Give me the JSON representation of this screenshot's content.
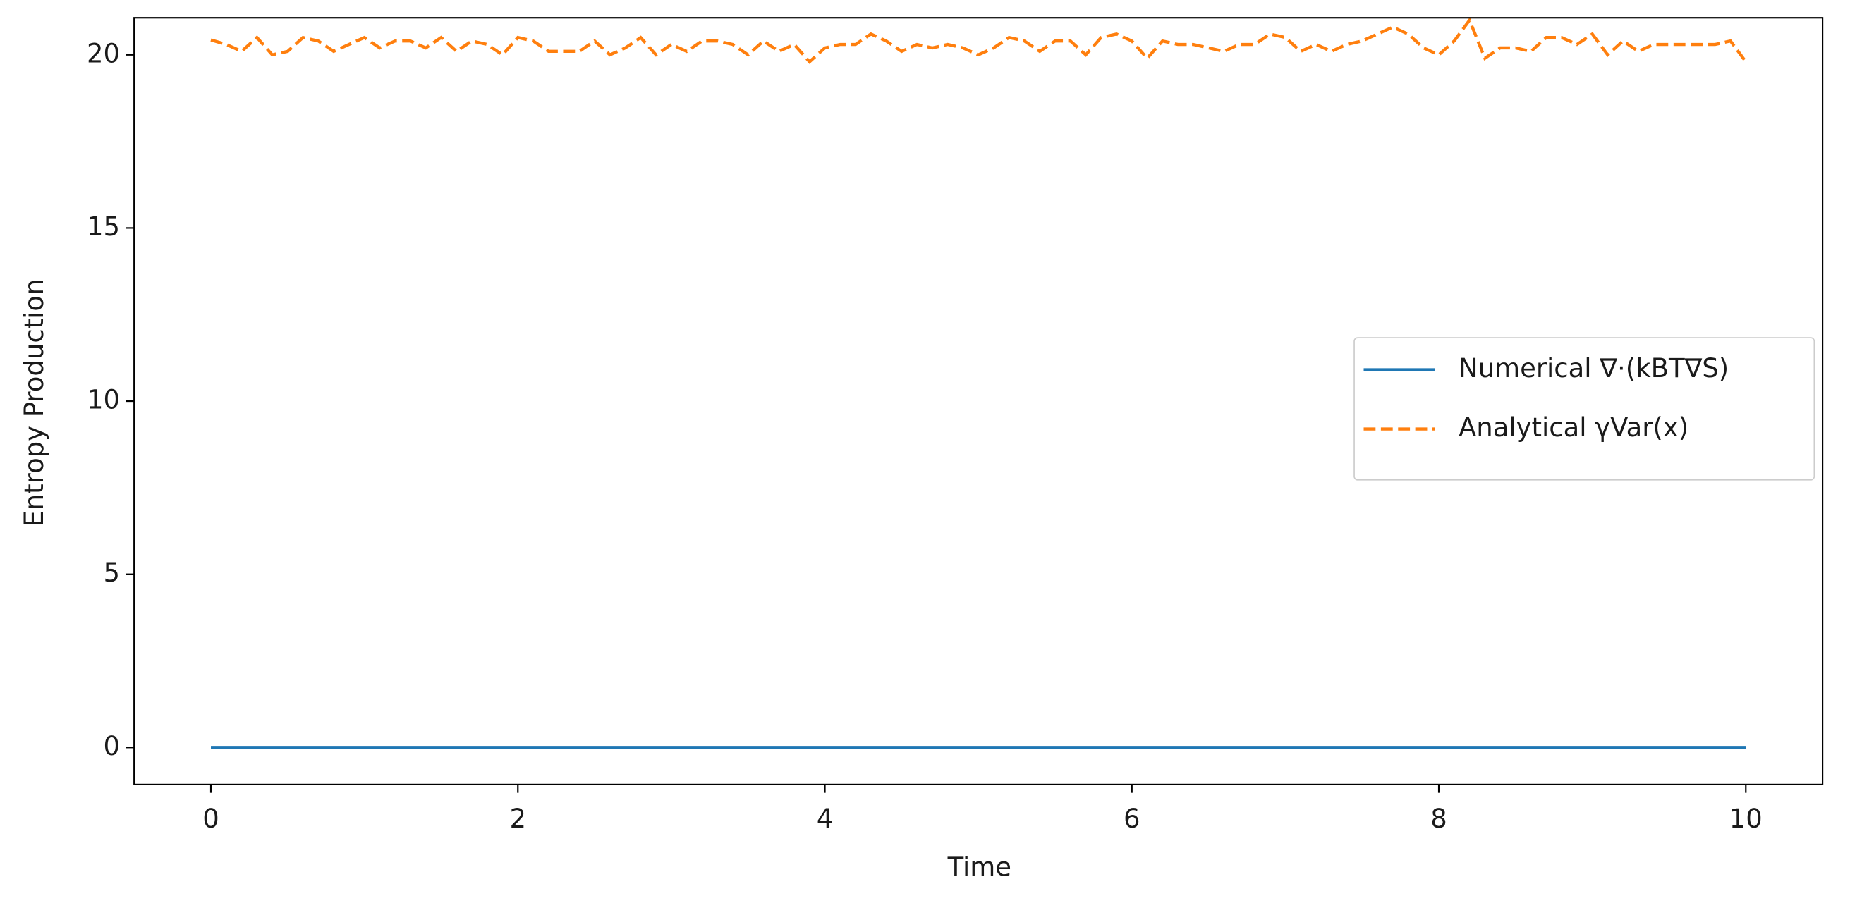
{
  "chart_data": {
    "type": "line",
    "x_label": "Time",
    "y_label": "Entropy Production",
    "x": [
      0,
      0.1,
      0.2,
      0.3,
      0.4,
      0.5,
      0.6,
      0.7,
      0.8,
      0.9,
      1,
      1.1,
      1.2,
      1.3,
      1.4,
      1.5,
      1.6,
      1.7,
      1.8,
      1.9,
      2,
      2.1,
      2.2,
      2.3,
      2.4,
      2.5,
      2.6,
      2.7,
      2.8,
      2.9,
      3,
      3.1,
      3.2,
      3.3,
      3.4,
      3.5,
      3.6,
      3.7,
      3.8,
      3.9,
      4,
      4.1,
      4.2,
      4.3,
      4.4,
      4.5,
      4.6,
      4.7,
      4.8,
      4.9,
      5,
      5.1,
      5.2,
      5.3,
      5.4,
      5.5,
      5.6,
      5.7,
      5.8,
      5.9,
      6,
      6.1,
      6.2,
      6.3,
      6.4,
      6.5,
      6.6,
      6.7,
      6.8,
      6.9,
      7,
      7.1,
      7.2,
      7.3,
      7.4,
      7.5,
      7.6,
      7.7,
      7.8,
      7.9,
      8,
      8.1,
      8.2,
      8.3,
      8.4,
      8.5,
      8.6,
      8.7,
      8.8,
      8.9,
      9,
      9.1,
      9.2,
      9.3,
      9.4,
      9.5,
      9.6,
      9.7,
      9.8,
      9.9,
      10
    ],
    "series": [
      {
        "name": "Numerical ∇·(kBT∇S)",
        "color": "#1f77b4",
        "dashed": false,
        "values": [
          0,
          0,
          0,
          0,
          0,
          0,
          0,
          0,
          0,
          0,
          0,
          0,
          0,
          0,
          0,
          0,
          0,
          0,
          0,
          0,
          0,
          0,
          0,
          0,
          0,
          0,
          0,
          0,
          0,
          0,
          0,
          0,
          0,
          0,
          0,
          0,
          0,
          0,
          0,
          0,
          0,
          0,
          0,
          0,
          0,
          0,
          0,
          0,
          0,
          0,
          0,
          0,
          0,
          0,
          0,
          0,
          0,
          0,
          0,
          0,
          0,
          0,
          0,
          0,
          0,
          0,
          0,
          0,
          0,
          0,
          0,
          0,
          0,
          0,
          0,
          0,
          0,
          0,
          0,
          0,
          0,
          0,
          0,
          0,
          0,
          0,
          0,
          0,
          0,
          0,
          0,
          0,
          0,
          0,
          0,
          0,
          0,
          0,
          0,
          0,
          0
        ]
      },
      {
        "name": "Analytical γVar(x)",
        "color": "#ff7f0e",
        "dashed": true,
        "values": [
          20.43,
          20.3,
          20.1,
          20.5,
          20.0,
          20.1,
          20.5,
          20.4,
          20.1,
          20.3,
          20.5,
          20.2,
          20.4,
          20.4,
          20.2,
          20.5,
          20.1,
          20.4,
          20.3,
          20.0,
          20.5,
          20.4,
          20.1,
          20.1,
          20.1,
          20.4,
          20.0,
          20.2,
          20.5,
          20.0,
          20.3,
          20.1,
          20.4,
          20.4,
          20.3,
          20.0,
          20.4,
          20.1,
          20.3,
          19.8,
          20.2,
          20.3,
          20.3,
          20.6,
          20.4,
          20.1,
          20.3,
          20.2,
          20.3,
          20.2,
          20.0,
          20.2,
          20.5,
          20.4,
          20.1,
          20.4,
          20.4,
          20.0,
          20.5,
          20.6,
          20.4,
          19.9,
          20.4,
          20.3,
          20.3,
          20.2,
          20.1,
          20.3,
          20.3,
          20.6,
          20.5,
          20.1,
          20.3,
          20.1,
          20.3,
          20.4,
          20.6,
          20.8,
          20.6,
          20.2,
          20.0,
          20.4,
          21.0,
          19.9,
          20.2,
          20.2,
          20.1,
          20.5,
          20.5,
          20.3,
          20.6,
          20.0,
          20.4,
          20.1,
          20.3,
          20.3,
          20.3,
          20.3,
          20.3,
          20.4,
          19.8
        ]
      }
    ],
    "xlim": [
      -0.5,
      10.5
    ],
    "xticks": [
      0,
      2,
      4,
      6,
      8,
      10
    ],
    "ylim": [
      -1.07,
      21.07
    ],
    "yticks": [
      0,
      5,
      10,
      15,
      20
    ],
    "grid": false,
    "legend": "right"
  }
}
